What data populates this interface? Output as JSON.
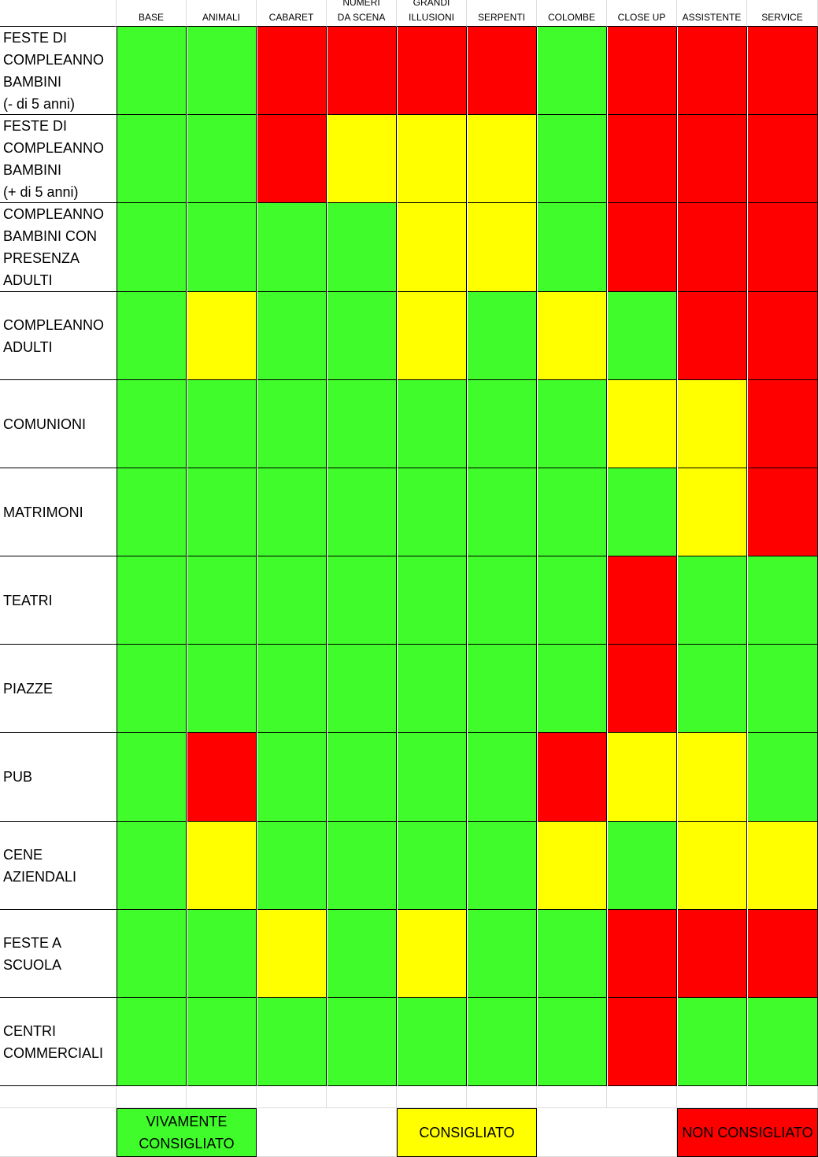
{
  "colors": {
    "green": "#3ffc2a",
    "yellow": "#ffff00",
    "red": "#ff0000"
  },
  "columns": [
    "BASE",
    "ANIMALI",
    "CABARET",
    "NUMERI\nDA SCENA",
    "GRANDI\nILLUSIONI",
    "SERPENTI",
    "COLOMBE",
    "CLOSE UP",
    "ASSISTENTE",
    "SERVICE"
  ],
  "rows": [
    {
      "label": "FESTE DI\nCOMPLEANNO\nBAMBINI\n(- di 5 anni)",
      "ratings": [
        "green",
        "green",
        "red",
        "red",
        "red",
        "red",
        "green",
        "red",
        "red",
        "red"
      ]
    },
    {
      "label": "FESTE DI\nCOMPLEANNO\nBAMBINI\n(+ di 5 anni)",
      "ratings": [
        "green",
        "green",
        "red",
        "yellow",
        "yellow",
        "yellow",
        "green",
        "red",
        "red",
        "red"
      ]
    },
    {
      "label": "COMPLEANNO\nBAMBINI CON\nPRESENZA\nADULTI",
      "ratings": [
        "green",
        "green",
        "green",
        "green",
        "yellow",
        "yellow",
        "green",
        "red",
        "red",
        "red"
      ]
    },
    {
      "label": "COMPLEANNO\nADULTI",
      "ratings": [
        "green",
        "yellow",
        "green",
        "green",
        "yellow",
        "green",
        "yellow",
        "green",
        "red",
        "red"
      ]
    },
    {
      "label": "COMUNIONI",
      "ratings": [
        "green",
        "green",
        "green",
        "green",
        "green",
        "green",
        "green",
        "yellow",
        "yellow",
        "red"
      ]
    },
    {
      "label": "MATRIMONI",
      "ratings": [
        "green",
        "green",
        "green",
        "green",
        "green",
        "green",
        "green",
        "green",
        "yellow",
        "red"
      ]
    },
    {
      "label": "TEATRI",
      "ratings": [
        "green",
        "green",
        "green",
        "green",
        "green",
        "green",
        "green",
        "red",
        "green",
        "green"
      ]
    },
    {
      "label": "PIAZZE",
      "ratings": [
        "green",
        "green",
        "green",
        "green",
        "green",
        "green",
        "green",
        "red",
        "green",
        "green"
      ]
    },
    {
      "label": "PUB",
      "ratings": [
        "green",
        "red",
        "green",
        "green",
        "green",
        "green",
        "red",
        "yellow",
        "yellow",
        "green"
      ]
    },
    {
      "label": "CENE AZIENDALI",
      "ratings": [
        "green",
        "yellow",
        "green",
        "green",
        "green",
        "green",
        "yellow",
        "green",
        "yellow",
        "yellow"
      ]
    },
    {
      "label": "FESTE A SCUOLA",
      "ratings": [
        "green",
        "green",
        "yellow",
        "green",
        "yellow",
        "green",
        "green",
        "red",
        "red",
        "red"
      ]
    },
    {
      "label": "CENTRI\nCOMMERCIALI",
      "ratings": [
        "green",
        "green",
        "green",
        "green",
        "green",
        "green",
        "green",
        "red",
        "green",
        "green"
      ]
    }
  ],
  "legend": [
    {
      "label": "VIVAMENTE\nCONSIGLIATO",
      "color": "green"
    },
    {
      "label": "CONSIGLIATO",
      "color": "yellow"
    },
    {
      "label": "NON CONSIGLIATO",
      "color": "red"
    }
  ]
}
